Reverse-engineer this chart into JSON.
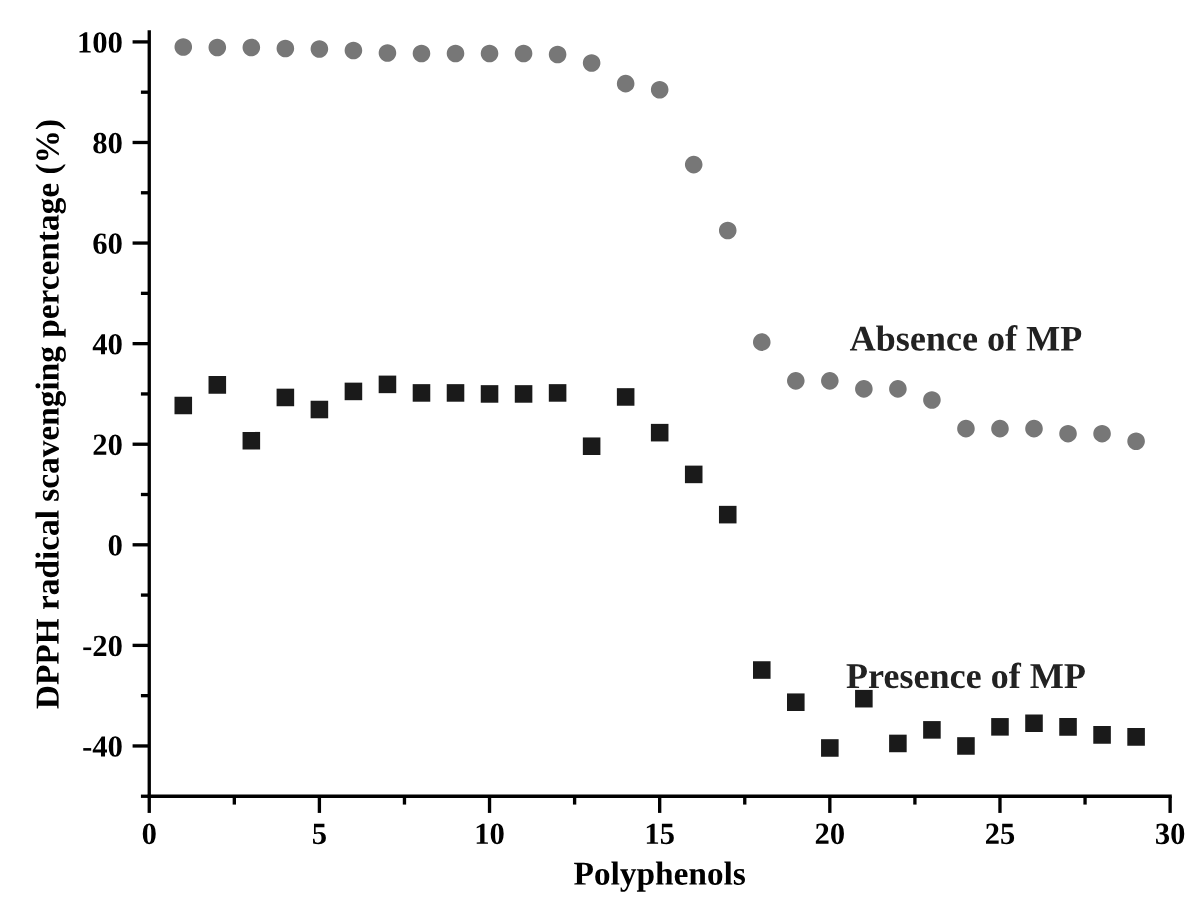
{
  "chart_data": {
    "type": "scatter",
    "xlabel": "Polyphenols",
    "ylabel": "DPPH radical scavenging percentage (%)",
    "x": [
      1,
      2,
      3,
      4,
      5,
      6,
      7,
      8,
      9,
      10,
      11,
      12,
      13,
      14,
      15,
      16,
      17,
      18,
      19,
      20,
      21,
      22,
      23,
      24,
      25,
      26,
      27,
      28,
      29
    ],
    "series": [
      {
        "name": "Absence of MP",
        "color": "#777777",
        "marker": "circle",
        "values": [
          99.0,
          98.9,
          98.9,
          98.7,
          98.6,
          98.3,
          97.8,
          97.7,
          97.7,
          97.7,
          97.7,
          97.5,
          95.8,
          91.7,
          90.5,
          75.6,
          62.5,
          40.3,
          32.6,
          32.6,
          31.0,
          31.0,
          28.8,
          23.1,
          23.1,
          23.1,
          22.1,
          22.1,
          20.6
        ]
      },
      {
        "name": "Presence of MP",
        "color": "#1a1a1a",
        "marker": "square",
        "values": [
          27.7,
          31.8,
          20.7,
          29.3,
          26.9,
          30.5,
          31.9,
          30.2,
          30.2,
          30.0,
          30.0,
          30.2,
          19.6,
          29.4,
          22.3,
          14.0,
          6.0,
          -24.9,
          -31.3,
          -40.4,
          -30.6,
          -39.5,
          -36.8,
          -40.0,
          -36.2,
          -35.5,
          -36.2,
          -37.8,
          -38.2
        ]
      }
    ],
    "xlim": [
      0,
      30
    ],
    "xticks": [
      0,
      5,
      10,
      15,
      20,
      25,
      30
    ],
    "ylim": [
      -50,
      102
    ],
    "yticks": [
      -40,
      -20,
      0,
      20,
      40,
      60,
      80,
      100
    ],
    "grid": false,
    "legend": false
  }
}
